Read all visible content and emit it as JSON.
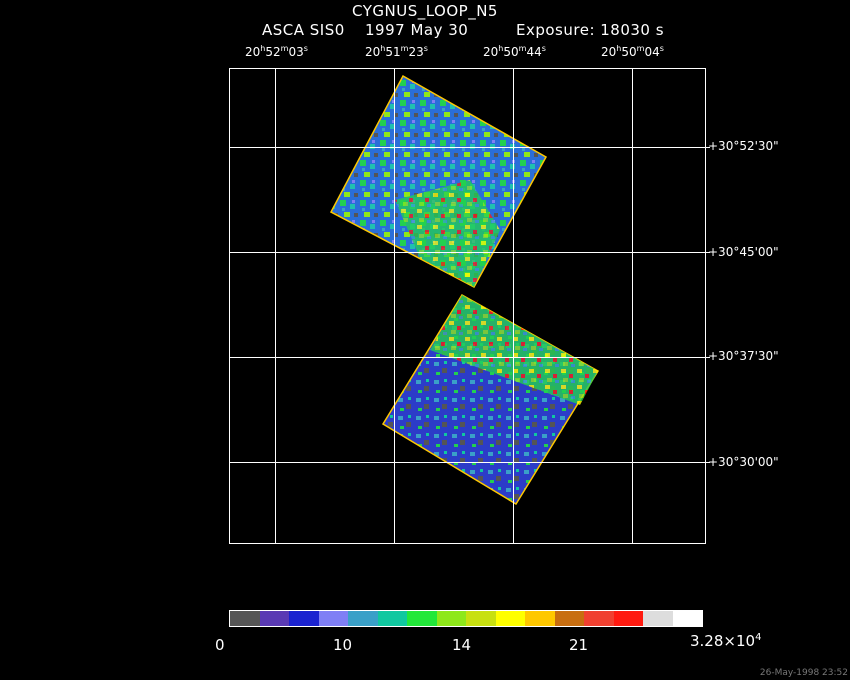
{
  "title": "CYGNUS_LOOP_N5",
  "subtitle": {
    "instrument": "ASCA SIS0",
    "date": "1997 May 30",
    "exposure": "Exposure: 18030 s"
  },
  "ra_labels": [
    {
      "h": "20",
      "m": "52",
      "s": "03"
    },
    {
      "h": "20",
      "m": "51",
      "s": "23"
    },
    {
      "h": "20",
      "m": "50",
      "s": "44"
    },
    {
      "h": "20",
      "m": "50",
      "s": "04"
    }
  ],
  "dec_labels": [
    "+30°52'30\"",
    "+30°45'00\"",
    "+30°37'30\"",
    "+30°30'00\""
  ],
  "colorbar": {
    "colors": [
      "#555555",
      "#5a3ab4",
      "#1a22d0",
      "#7f7ff5",
      "#3aa0c8",
      "#10c8a0",
      "#22e83a",
      "#8ee81a",
      "#c8e010",
      "#ffff00",
      "#ffc800",
      "#c86e10",
      "#f04030",
      "#ff1a10",
      "#dddddd",
      "#ffffff"
    ],
    "labels": [
      "0",
      "10",
      "14",
      "21",
      "3.28×10"
    ],
    "exp": "4"
  },
  "timestamp": "26-May-1998 23:52"
}
